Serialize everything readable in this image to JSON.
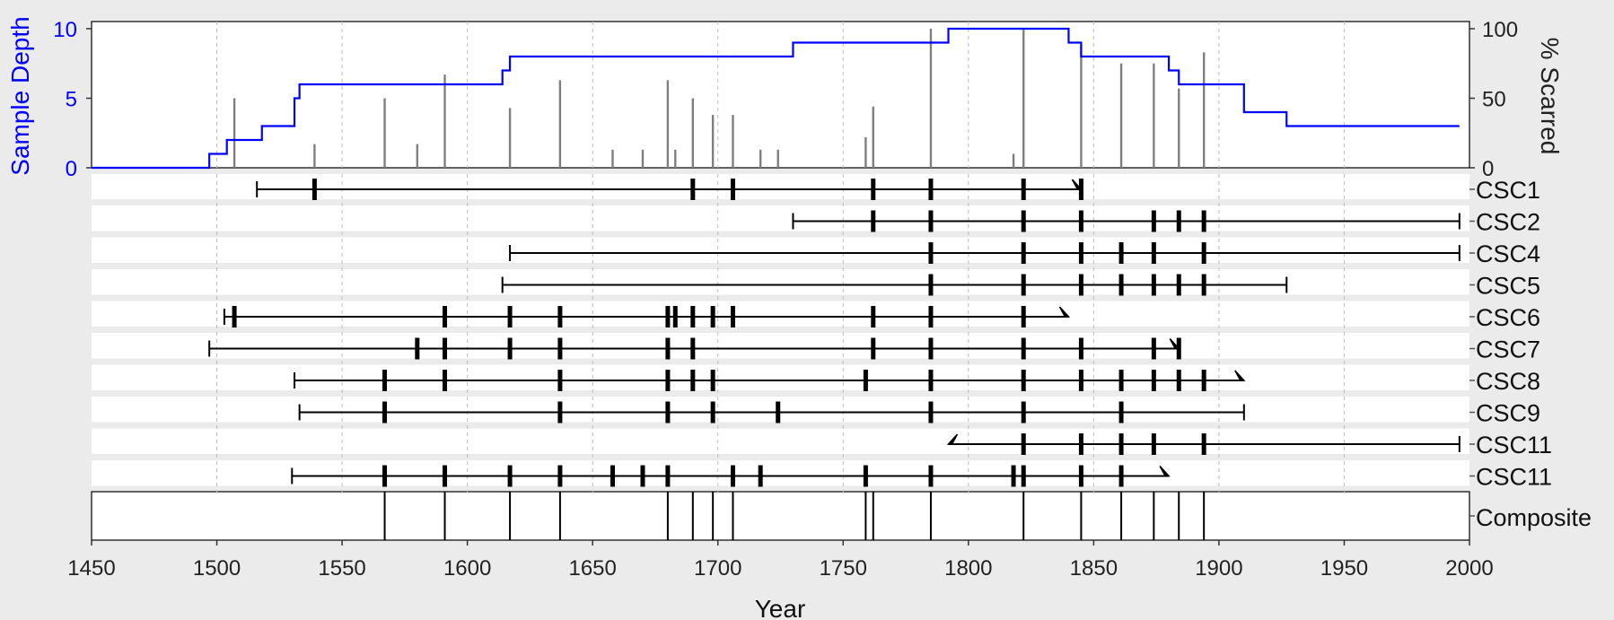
{
  "colors": {
    "background": "#ebebeb",
    "panel": "#ffffff",
    "depth_line": "#0000ff",
    "scar_bars": "#7f7f7f",
    "series_line": "#000000",
    "grid": "#bdbdbd",
    "row_band": "#ebebeb"
  },
  "chart_data": {
    "type": "fire-history",
    "title": "",
    "xlabel": "Year",
    "xlim": [
      1450,
      2000
    ],
    "x_ticks": [
      "1450",
      "1500",
      "1550",
      "1600",
      "1650",
      "1700",
      "1750",
      "1800",
      "1850",
      "1900",
      "1950",
      "2000"
    ],
    "grid": "vertical dashed",
    "sample_depth": {
      "ylabel": "Sample Depth",
      "ylim": [
        0,
        10
      ],
      "y_ticks": [
        "0",
        "5",
        "10"
      ],
      "steps": [
        [
          1450,
          0
        ],
        [
          1497,
          1
        ],
        [
          1504,
          2
        ],
        [
          1518,
          3
        ],
        [
          1531,
          5
        ],
        [
          1533,
          6
        ],
        [
          1614,
          7
        ],
        [
          1617,
          8
        ],
        [
          1730,
          9
        ],
        [
          1792,
          10
        ],
        [
          1840,
          9
        ],
        [
          1845,
          8
        ],
        [
          1880,
          7
        ],
        [
          1884,
          6
        ],
        [
          1910,
          4
        ],
        [
          1927,
          3
        ],
        [
          1996,
          3
        ]
      ]
    },
    "percent_scarred": {
      "ylabel": "% Scarred",
      "ylim": [
        0,
        100
      ],
      "y_ticks": [
        "0",
        "50",
        "100"
      ],
      "bars": [
        [
          1507,
          50
        ],
        [
          1539,
          17
        ],
        [
          1567,
          50
        ],
        [
          1580,
          17
        ],
        [
          1591,
          67
        ],
        [
          1617,
          43
        ],
        [
          1637,
          63
        ],
        [
          1658,
          13
        ],
        [
          1670,
          13
        ],
        [
          1680,
          63
        ],
        [
          1683,
          13
        ],
        [
          1690,
          50
        ],
        [
          1698,
          38
        ],
        [
          1706,
          38
        ],
        [
          1717,
          13
        ],
        [
          1724,
          13
        ],
        [
          1759,
          22
        ],
        [
          1762,
          44
        ],
        [
          1785,
          100
        ],
        [
          1818,
          10
        ],
        [
          1822,
          100
        ],
        [
          1845,
          88
        ],
        [
          1861,
          75
        ],
        [
          1874,
          75
        ],
        [
          1884,
          57
        ],
        [
          1894,
          83
        ]
      ]
    },
    "series": [
      {
        "name": "CSC1",
        "start": 1516,
        "end": 1845,
        "start_type": "pith",
        "end_type": "outer_arrow",
        "scars": [
          1539,
          1690,
          1706,
          1762,
          1785,
          1822,
          1845
        ]
      },
      {
        "name": "CSC2",
        "start": 1730,
        "end": 1996,
        "start_type": "pith",
        "end_type": "bark",
        "scars": [
          1762,
          1785,
          1822,
          1845,
          1874,
          1884,
          1894
        ]
      },
      {
        "name": "CSC4",
        "start": 1617,
        "end": 1996,
        "start_type": "pith",
        "end_type": "bark",
        "scars": [
          1785,
          1822,
          1845,
          1861,
          1874,
          1894
        ]
      },
      {
        "name": "CSC5",
        "start": 1614,
        "end": 1927,
        "start_type": "pith",
        "end_type": "bark",
        "scars": [
          1785,
          1822,
          1845,
          1861,
          1874,
          1884,
          1894
        ]
      },
      {
        "name": "CSC6",
        "start": 1503,
        "end": 1840,
        "start_type": "pith",
        "end_type": "outer_arrow",
        "scars": [
          1507,
          1591,
          1617,
          1637,
          1680,
          1683,
          1690,
          1698,
          1706,
          1762,
          1785,
          1822
        ]
      },
      {
        "name": "CSC7",
        "start": 1497,
        "end": 1884,
        "start_type": "pith",
        "end_type": "outer_arrow",
        "scars": [
          1580,
          1591,
          1617,
          1637,
          1680,
          1690,
          1762,
          1785,
          1822,
          1845,
          1874,
          1884
        ]
      },
      {
        "name": "CSC8",
        "start": 1531,
        "end": 1910,
        "start_type": "pith",
        "end_type": "outer_arrow",
        "scars": [
          1567,
          1591,
          1637,
          1680,
          1690,
          1698,
          1759,
          1785,
          1822,
          1845,
          1861,
          1874,
          1884,
          1894
        ]
      },
      {
        "name": "CSC9",
        "start": 1533,
        "end": 1910,
        "start_type": "pith",
        "end_type": "bark",
        "scars": [
          1567,
          1637,
          1680,
          1698,
          1724,
          1785,
          1822,
          1861
        ]
      },
      {
        "name": "CSC11",
        "start": 1792,
        "end": 1996,
        "start_type": "inner_arrow",
        "end_type": "bark",
        "scars": [
          1822,
          1845,
          1861,
          1874,
          1894
        ]
      },
      {
        "name": "CSC11",
        "start": 1530,
        "end": 1880,
        "start_type": "pith",
        "end_type": "outer_arrow",
        "scars": [
          1567,
          1591,
          1617,
          1637,
          1658,
          1670,
          1680,
          1706,
          1717,
          1759,
          1785,
          1818,
          1822,
          1845,
          1861
        ]
      }
    ],
    "composite": {
      "name": "Composite",
      "events": [
        1567,
        1591,
        1617,
        1637,
        1680,
        1690,
        1698,
        1706,
        1759,
        1762,
        1785,
        1822,
        1845,
        1861,
        1874,
        1884,
        1894
      ]
    }
  }
}
